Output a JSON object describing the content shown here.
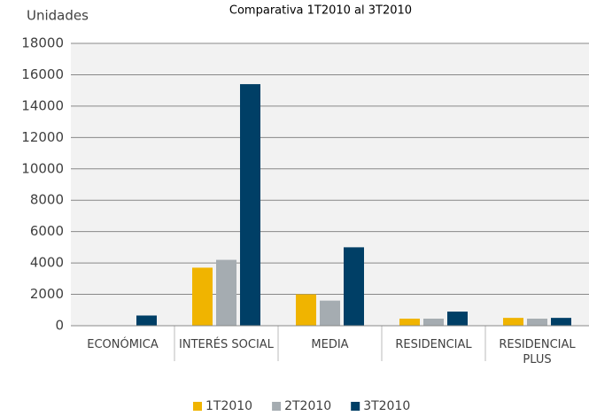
{
  "chart_data": {
    "type": "bar",
    "title": "Comparativa 1T2010 al 3T2010",
    "y_label": "Unidades",
    "categories": [
      "ECONÓMICA",
      "INTERÉS SOCIAL",
      "MEDIA",
      "RESIDENCIAL",
      "RESIDENCIAL PLUS"
    ],
    "series": [
      {
        "name": "1T2010",
        "color": "#f0b400",
        "values": [
          0,
          3700,
          2000,
          450,
          500
        ]
      },
      {
        "name": "2T2010",
        "color": "#a5acb1",
        "values": [
          0,
          4200,
          1600,
          450,
          450
        ]
      },
      {
        "name": "3T2010",
        "color": "#003f66",
        "values": [
          650,
          15400,
          5000,
          900,
          500
        ]
      }
    ],
    "ylim": [
      0,
      18000
    ],
    "yticks": [
      0,
      2000,
      4000,
      6000,
      8000,
      10000,
      12000,
      14000,
      16000,
      18000
    ],
    "grid": true,
    "legend": "bottom"
  }
}
